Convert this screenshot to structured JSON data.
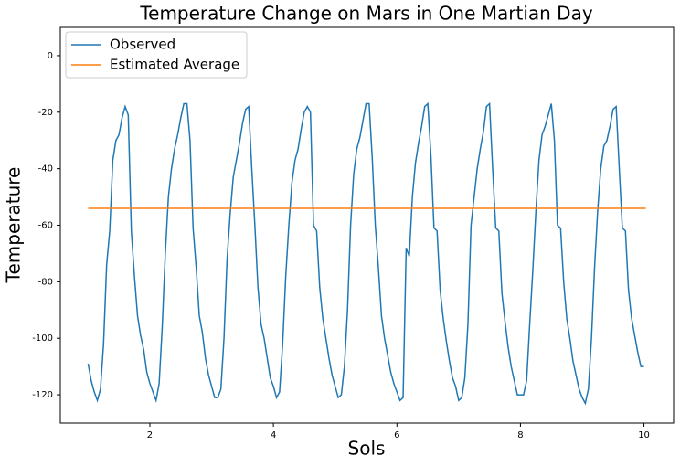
{
  "chart_data": {
    "type": "line",
    "title": "Temperature Change on Mars in One Martian Day",
    "xlabel": "Sols",
    "ylabel": "Temperature",
    "xlim": [
      0.55,
      10.48
    ],
    "ylim": [
      -130,
      10
    ],
    "xticks": [
      2,
      4,
      6,
      8,
      10
    ],
    "yticks": [
      -120,
      -100,
      -80,
      -60,
      -40,
      -20,
      0
    ],
    "grid": false,
    "legend": "upper left",
    "series": [
      {
        "name": "Observed",
        "color": "#1f77b4",
        "x": [
          1,
          1.05,
          1.1,
          1.15,
          1.2,
          1.25,
          1.3,
          1.35,
          1.4,
          1.45,
          1.5,
          1.55,
          1.6,
          1.65,
          1.7,
          1.75,
          1.8,
          1.85,
          1.9,
          1.95,
          2,
          2.05,
          2.1,
          2.15,
          2.2,
          2.25,
          2.3,
          2.35,
          2.4,
          2.45,
          2.5,
          2.55,
          2.6,
          2.65,
          2.7,
          2.75,
          2.8,
          2.85,
          2.9,
          2.95,
          3,
          3.05,
          3.1,
          3.15,
          3.2,
          3.25,
          3.3,
          3.35,
          3.4,
          3.45,
          3.5,
          3.55,
          3.6,
          3.65,
          3.7,
          3.75,
          3.8,
          3.85,
          3.9,
          3.95,
          4,
          4.05,
          4.1,
          4.15,
          4.2,
          4.25,
          4.3,
          4.35,
          4.4,
          4.45,
          4.5,
          4.55,
          4.6,
          4.65,
          4.7,
          4.75,
          4.8,
          4.85,
          4.9,
          4.95,
          5,
          5.05,
          5.1,
          5.15,
          5.2,
          5.25,
          5.3,
          5.35,
          5.4,
          5.45,
          5.5,
          5.55,
          5.6,
          5.65,
          5.7,
          5.75,
          5.8,
          5.85,
          5.9,
          5.95,
          6,
          6.05,
          6.1,
          6.15,
          6.2,
          6.25,
          6.3,
          6.35,
          6.4,
          6.45,
          6.5,
          6.55,
          6.6,
          6.65,
          6.7,
          6.75,
          6.8,
          6.85,
          6.9,
          6.95,
          7,
          7.05,
          7.1,
          7.15,
          7.2,
          7.25,
          7.3,
          7.35,
          7.4,
          7.45,
          7.5,
          7.55,
          7.6,
          7.65,
          7.7,
          7.75,
          7.8,
          7.85,
          7.9,
          7.95,
          8,
          8.05,
          8.1,
          8.15,
          8.2,
          8.25,
          8.3,
          8.35,
          8.4,
          8.45,
          8.5,
          8.55,
          8.6,
          8.65,
          8.7,
          8.75,
          8.8,
          8.85,
          8.9,
          8.95,
          9,
          9.05,
          9.1,
          9.15,
          9.2,
          9.25,
          9.3,
          9.35,
          9.4,
          9.45,
          9.5,
          9.55,
          9.6,
          9.65,
          9.7,
          9.75,
          9.8,
          9.85,
          9.9,
          9.95,
          10
        ],
        "values": [
          -109,
          -115,
          -119,
          -122,
          -118,
          -102,
          -74,
          -62,
          -37,
          -30,
          -28,
          -22,
          -18,
          -21,
          -62,
          -78,
          -92,
          -99,
          -104,
          -112,
          -116,
          -119,
          -122,
          -116,
          -96,
          -70,
          -50,
          -40,
          -33,
          -28,
          -22,
          -17,
          -17,
          -30,
          -61,
          -75,
          -92,
          -98,
          -107,
          -113,
          -117,
          -121,
          -121,
          -118,
          -100,
          -72,
          -56,
          -43,
          -37,
          -31,
          -24,
          -19,
          -18,
          -40,
          -60,
          -82,
          -95,
          -100,
          -107,
          -114,
          -117,
          -121,
          -119,
          -102,
          -78,
          -60,
          -45,
          -37,
          -33,
          -26,
          -20,
          -18,
          -20,
          -60,
          -62,
          -82,
          -93,
          -100,
          -107,
          -113,
          -117,
          -121,
          -120,
          -110,
          -90,
          -60,
          -42,
          -33,
          -29,
          -23,
          -17,
          -17,
          -36,
          -60,
          -75,
          -92,
          -100,
          -106,
          -112,
          -116,
          -119,
          -122,
          -121,
          -68,
          -71,
          -50,
          -38,
          -31,
          -25,
          -18,
          -17,
          -35,
          -61,
          -62,
          -83,
          -93,
          -101,
          -108,
          -114,
          -117,
          -122,
          -121,
          -114,
          -95,
          -60,
          -50,
          -40,
          -33,
          -27,
          -18,
          -17,
          -40,
          -61,
          -62,
          -84,
          -94,
          -103,
          -110,
          -115,
          -120,
          -120,
          -120,
          -115,
          -95,
          -76,
          -55,
          -37,
          -28,
          -25,
          -21,
          -17,
          -30,
          -60,
          -61,
          -80,
          -93,
          -100,
          -108,
          -113,
          -118,
          -121,
          -123,
          -118,
          -100,
          -75,
          -55,
          -40,
          -32,
          -30,
          -25,
          -19,
          -18,
          -40,
          -61,
          -62,
          -83,
          -93,
          -99,
          -105,
          -110,
          -110
        ]
      },
      {
        "name": "Estimated Average",
        "color": "#ff7f0e",
        "x": [
          1,
          10.03
        ],
        "values": [
          -54,
          -54
        ]
      }
    ]
  }
}
